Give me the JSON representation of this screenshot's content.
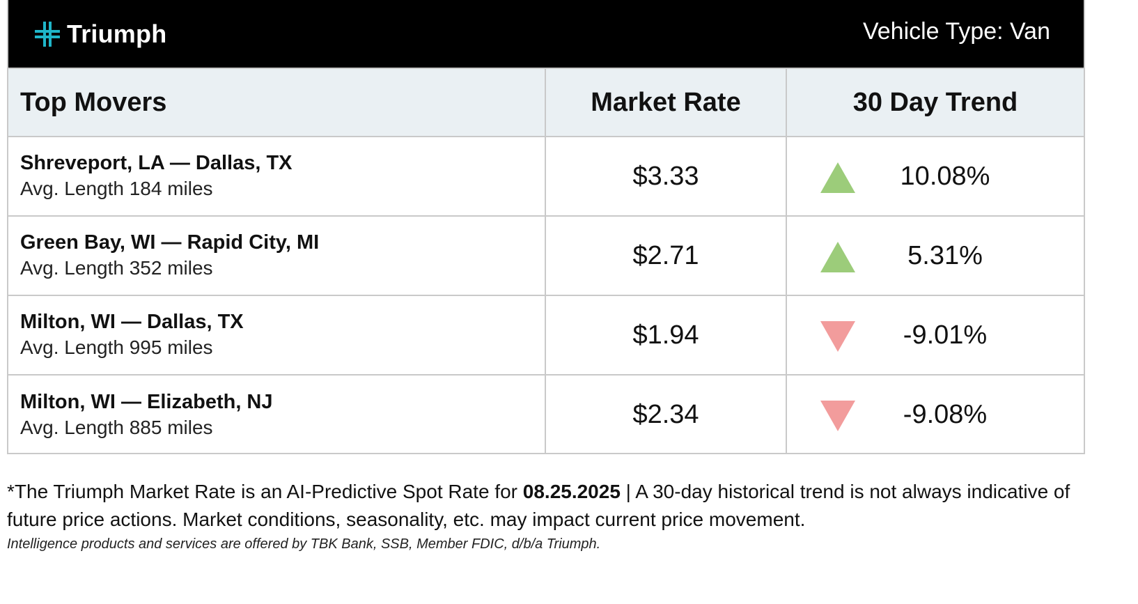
{
  "header": {
    "brand": "Triumph",
    "logo_icon": "triumph-cross-logo",
    "brand_color": "#1fb6c9",
    "vehicle_type_label": "Vehicle Type: Van"
  },
  "table": {
    "columns": [
      "Top Movers",
      "Market Rate",
      "30 Day Trend"
    ],
    "rows": [
      {
        "lane": "Shreveport, LA — Dallas, TX",
        "length": "Avg. Length 184 miles",
        "rate": "$3.33",
        "trend_direction": "up",
        "trend": "10.08%"
      },
      {
        "lane": "Green Bay, WI — Rapid City, MI",
        "length": "Avg. Length 352 miles",
        "rate": "$2.71",
        "trend_direction": "up",
        "trend": "5.31%"
      },
      {
        "lane": "Milton, WI — Dallas, TX",
        "length": "Avg. Length 995 miles",
        "rate": "$1.94",
        "trend_direction": "down",
        "trend": "-9.01%"
      },
      {
        "lane": "Milton, WI — Elizabeth, NJ",
        "length": "Avg. Length 885 miles",
        "rate": "$2.34",
        "trend_direction": "down",
        "trend": "-9.08%"
      }
    ],
    "up_color": "#9ccc7a",
    "down_color": "#f29c9c"
  },
  "footer": {
    "disclaimer_pre": "*The Triumph Market Rate is an AI-Predictive Spot Rate for ",
    "disclaimer_date": "08.25.2025",
    "disclaimer_post": " | A 30-day historical trend is not always indicative of future price actions. Market conditions, seasonality, etc. may impact current price movement.",
    "legal": "Intelligence products and services are offered by TBK Bank, SSB, Member FDIC, d/b/a Triumph."
  }
}
